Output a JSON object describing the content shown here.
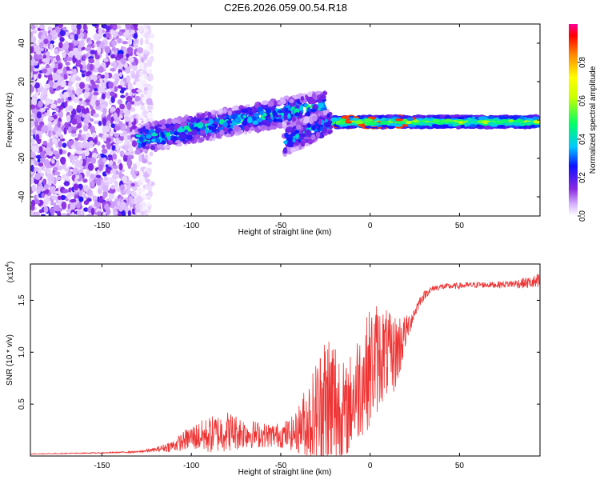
{
  "title": "C2E6.2026.059.00.54.R18",
  "chart_data": [
    {
      "type": "heatmap",
      "xlabel": "Height of straight line (km)",
      "ylabel": "Frequency (Hz)",
      "xlim": [
        -190,
        95
      ],
      "ylim": [
        -50,
        50
      ],
      "xticks": [
        -150,
        -100,
        -50,
        0,
        50
      ],
      "xtick_labels": [
        "-150",
        "-100",
        "-50",
        "0",
        "50"
      ],
      "yticks": [
        -40,
        -20,
        0,
        20,
        40
      ],
      "ytick_labels": [
        "-40",
        "-20",
        "0",
        "20",
        "40"
      ],
      "colorbar": {
        "label": "Normalized spectral amplitude",
        "range": [
          0,
          1
        ],
        "ticks": [
          0.0,
          0.2,
          0.4,
          0.6,
          0.8
        ],
        "tick_labels": [
          "0.0",
          "0.2",
          "0.4",
          "0.6",
          "0.8"
        ]
      },
      "features": [
        {
          "name": "broadband noise",
          "x_range": [
            -190,
            -130
          ],
          "freq_range": [
            -50,
            50
          ],
          "amplitude": 0.15
        },
        {
          "name": "rising trace",
          "x_range": [
            -130,
            -25
          ],
          "freq_start": -10,
          "freq_end": 8,
          "amplitude": 0.35
        },
        {
          "name": "second rising trace",
          "x_range": [
            -48,
            -22
          ],
          "freq_start": -11,
          "freq_end": -1,
          "amplitude": 0.3
        },
        {
          "name": "steady tone",
          "x_range": [
            -20,
            95
          ],
          "freq": -1,
          "amplitude": 0.6,
          "peak_amplitude": 0.9
        }
      ]
    },
    {
      "type": "line",
      "xlabel": "Height of straight line (km)",
      "ylabel": "SNR (10 * v/v)",
      "yscale_label": "(x10",
      "yscale_exp": "4",
      "yscale_close": ")",
      "xlim": [
        -190,
        95
      ],
      "ylim": [
        0,
        1.85
      ],
      "xticks": [
        -150,
        -100,
        -50,
        0,
        50
      ],
      "xtick_labels": [
        "-150",
        "-100",
        "-50",
        "0",
        "50"
      ],
      "yticks": [
        0.5,
        1.0,
        1.5
      ],
      "ytick_labels": [
        "0.5",
        "1.0",
        "1.5"
      ],
      "color": "#ee3333",
      "envelope": {
        "x": [
          -190,
          -150,
          -130,
          -120,
          -110,
          -100,
          -90,
          -80,
          -70,
          -60,
          -50,
          -42,
          -38,
          -30,
          -26,
          -22,
          -18,
          -14,
          -10,
          -6,
          -2,
          0,
          4,
          8,
          12,
          16,
          20,
          24,
          28,
          32,
          36,
          40,
          50,
          60,
          70,
          80,
          90,
          95
        ],
        "base": [
          0.02,
          0.03,
          0.04,
          0.06,
          0.1,
          0.18,
          0.2,
          0.24,
          0.22,
          0.2,
          0.2,
          0.22,
          0.3,
          0.4,
          0.45,
          0.5,
          0.45,
          0.4,
          0.55,
          0.7,
          0.8,
          0.85,
          0.95,
          1.0,
          0.95,
          1.05,
          1.2,
          1.35,
          1.5,
          1.58,
          1.62,
          1.63,
          1.64,
          1.65,
          1.65,
          1.66,
          1.67,
          1.67
        ],
        "spread": [
          0.003,
          0.005,
          0.008,
          0.02,
          0.06,
          0.12,
          0.18,
          0.2,
          0.15,
          0.12,
          0.12,
          0.18,
          0.3,
          0.55,
          0.75,
          0.85,
          0.7,
          0.45,
          0.5,
          0.55,
          0.55,
          0.6,
          0.55,
          0.45,
          0.4,
          0.35,
          0.15,
          0.07,
          0.05,
          0.04,
          0.03,
          0.03,
          0.03,
          0.03,
          0.03,
          0.04,
          0.06,
          0.1
        ]
      }
    }
  ]
}
